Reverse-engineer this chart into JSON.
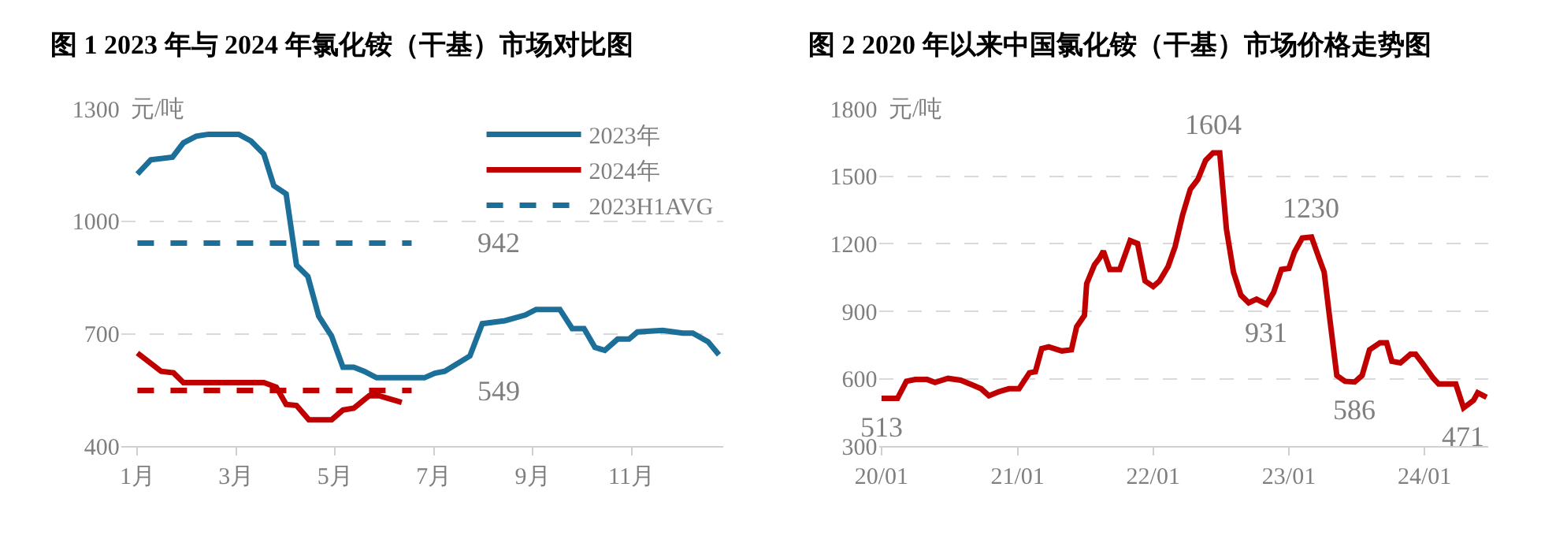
{
  "chart_data": [
    {
      "type": "line",
      "title": "图 1 2023 年与 2024 年氯化铵（干基）市场对比图",
      "ylabel": "元/吨",
      "xlim": [
        0.67,
        12.85
      ],
      "xticks": [
        {
          "value": 1,
          "label": "1月"
        },
        {
          "value": 3,
          "label": "3月"
        },
        {
          "value": 5,
          "label": "5月"
        },
        {
          "value": 7,
          "label": "7月"
        },
        {
          "value": 9,
          "label": "9月"
        },
        {
          "value": 11,
          "label": "11月"
        }
      ],
      "ylim": [
        400,
        1300
      ],
      "yticks": [
        400,
        700,
        1000,
        1300
      ],
      "grid": "y",
      "legend": "top right",
      "series": [
        {
          "name": "2023年",
          "color": "#1b6f99",
          "x": [
            1.0,
            1.27,
            1.71,
            1.93,
            2.19,
            2.44,
            3.05,
            3.3,
            3.56,
            3.76,
            4.01,
            4.22,
            4.45,
            4.67,
            4.93,
            5.16,
            5.38,
            5.59,
            5.84,
            6.81,
            7.02,
            7.22,
            7.73,
            7.98,
            8.44,
            8.85,
            9.07,
            9.55,
            9.8,
            10.04,
            10.26,
            10.46,
            10.72,
            10.95,
            11.12,
            11.63,
            12.04,
            12.24,
            12.55,
            12.77
          ],
          "values": [
            1126,
            1164,
            1171,
            1209,
            1227,
            1232,
            1232,
            1214,
            1179,
            1095,
            1073,
            883,
            853,
            747,
            694,
            611,
            611,
            600,
            583,
            583,
            595,
            600,
            641,
            727,
            735,
            750,
            765,
            765,
            714,
            714,
            664,
            656,
            686,
            686,
            705,
            709,
            702,
            702,
            679,
            644
          ]
        },
        {
          "name": "2024年",
          "color": "#c00000",
          "x": [
            1.0,
            1.48,
            1.73,
            1.93,
            3.56,
            3.81,
            4.01,
            4.22,
            4.47,
            4.93,
            5.16,
            5.38,
            5.69,
            5.89,
            6.35
          ],
          "values": [
            649,
            600,
            596,
            570,
            570,
            558,
            512,
            509,
            471,
            471,
            497,
            502,
            535,
            535,
            517
          ]
        },
        {
          "name": "2023H1AVG",
          "color": "#1b6f99",
          "line_style": "dashed",
          "x": [
            1.0,
            6.55
          ],
          "values": [
            942,
            942
          ]
        },
        {
          "color": "#c00000",
          "line_style": "dashed",
          "x": [
            1.0,
            6.55
          ],
          "values": [
            549,
            549
          ]
        }
      ],
      "annotations": [
        {
          "text": "942",
          "x": 6.55,
          "y": 942
        },
        {
          "text": "549",
          "x": 6.55,
          "y": 549
        }
      ]
    },
    {
      "type": "line",
      "title": "图 2 2020 年以来中国氯化铵（干基）市场价格走势图",
      "ylabel": "元/吨",
      "xlim": [
        "2019-12-25",
        "2024-06-20"
      ],
      "xticks": [
        {
          "value": "2020-01-01",
          "label": "20/01"
        },
        {
          "value": "2021-01-01",
          "label": "21/01"
        },
        {
          "value": "2022-01-01",
          "label": "22/01"
        },
        {
          "value": "2023-01-01",
          "label": "23/01"
        },
        {
          "value": "2024-01-01",
          "label": "24/01"
        }
      ],
      "ylim": [
        300,
        1800
      ],
      "yticks": [
        300,
        600,
        900,
        1200,
        1500,
        1800
      ],
      "grid": "y",
      "series": [
        {
          "color": "#c00000",
          "x": [
            "2020-01-01",
            "2020-02-13",
            "2020-03-08",
            "2020-04-01",
            "2020-05-03",
            "2020-05-24",
            "2020-06-28",
            "2020-08-01",
            "2020-09-04",
            "2020-09-25",
            "2020-10-16",
            "2020-11-12",
            "2020-12-09",
            "2021-01-05",
            "2021-02-02",
            "2021-02-18",
            "2021-03-07",
            "2021-03-26",
            "2021-04-30",
            "2021-05-26",
            "2021-06-09",
            "2021-06-30",
            "2021-07-06",
            "2021-07-27",
            "2021-08-10",
            "2021-08-20",
            "2021-09-06",
            "2021-10-03",
            "2021-10-31",
            "2021-11-20",
            "2021-12-10",
            "2022-01-01",
            "2022-01-18",
            "2022-02-10",
            "2022-03-01",
            "2022-03-21",
            "2022-04-11",
            "2022-05-01",
            "2022-05-22",
            "2022-06-11",
            "2022-06-29",
            "2022-07-17",
            "2022-08-05",
            "2022-08-25",
            "2022-09-15",
            "2022-10-06",
            "2022-11-02",
            "2022-11-21",
            "2022-12-12",
            "2023-01-01",
            "2023-01-16",
            "2023-02-06",
            "2023-03-03",
            "2023-03-23",
            "2023-04-06",
            "2023-04-20",
            "2023-05-10",
            "2023-06-01",
            "2023-06-27",
            "2023-07-17",
            "2023-08-06",
            "2023-09-03",
            "2023-09-21",
            "2023-10-05",
            "2023-10-28",
            "2023-11-24",
            "2023-12-08",
            "2023-12-28",
            "2024-01-25",
            "2024-02-08",
            "2024-03-25",
            "2024-04-15",
            "2024-04-28",
            "2024-05-12",
            "2024-05-23",
            "2024-06-16"
          ],
          "values": [
            513,
            513,
            589,
            597,
            597,
            584,
            602,
            594,
            571,
            556,
            525,
            543,
            556,
            556,
            627,
            632,
            734,
            742,
            724,
            729,
            831,
            882,
            1023,
            1107,
            1137,
            1168,
            1086,
            1086,
            1214,
            1201,
            1035,
            1010,
            1035,
            1099,
            1188,
            1328,
            1443,
            1486,
            1571,
            1604,
            1604,
            1265,
            1074,
            972,
            938,
            954,
            931,
            984,
            1086,
            1091,
            1163,
            1226,
            1230,
            1137,
            1074,
            882,
            615,
            589,
            586,
            615,
            729,
            760,
            760,
            678,
            671,
            709,
            709,
            666,
            602,
            577,
            577,
            471,
            487,
            505,
            538,
            518
          ]
        }
      ],
      "annotations": [
        {
          "text": "513",
          "x": "2020-01-01",
          "y": 513
        },
        {
          "text": "1604",
          "x": "2022-06-11",
          "y": 1604
        },
        {
          "text": "931",
          "x": "2022-11-02",
          "y": 931
        },
        {
          "text": "1230",
          "x": "2023-03-03",
          "y": 1230
        },
        {
          "text": "586",
          "x": "2023-06-27",
          "y": 586
        },
        {
          "text": "471",
          "x": "2024-04-15",
          "y": 471
        }
      ]
    }
  ]
}
